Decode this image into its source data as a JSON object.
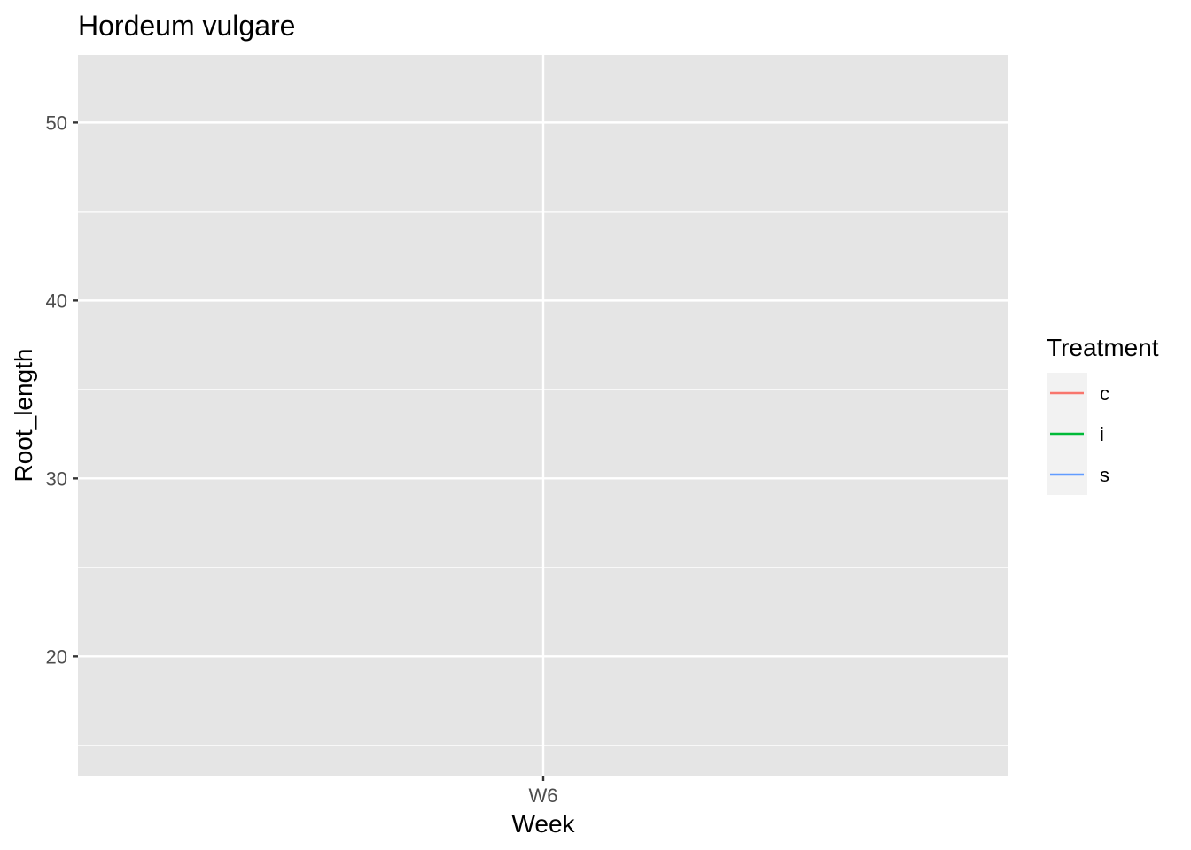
{
  "chart_data": {
    "type": "line",
    "title": "Hordeum vulgare",
    "xlabel": "Week",
    "ylabel": "Root_length",
    "categories": [
      "W6"
    ],
    "ylim": [
      13.3,
      53.8
    ],
    "y_ticks": [
      20,
      30,
      40,
      50
    ],
    "y_minor_ticks": [
      15,
      25,
      35,
      45
    ],
    "grid": true,
    "panel_background": "#e5e5e5",
    "grid_color": "#ffffff",
    "legend": {
      "title": "Treatment",
      "position": "right",
      "entries": [
        {
          "label": "c",
          "color": "#F8766D"
        },
        {
          "label": "i",
          "color": "#00BA38"
        },
        {
          "label": "s",
          "color": "#619CFF"
        }
      ]
    },
    "series": [
      {
        "name": "c",
        "color": "#F8766D",
        "values": [
          null
        ]
      },
      {
        "name": "i",
        "color": "#00BA38",
        "values": [
          null
        ]
      },
      {
        "name": "s",
        "color": "#619CFF",
        "values": [
          null
        ]
      }
    ]
  }
}
